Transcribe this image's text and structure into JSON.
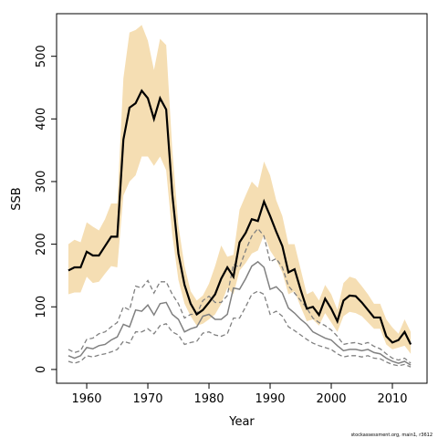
{
  "chart_data": {
    "type": "line",
    "xlabel": "Year",
    "ylabel": "SSB",
    "footer": "stockassessment.org, main1, r3612",
    "x": [
      1957,
      1958,
      1959,
      1960,
      1961,
      1962,
      1963,
      1964,
      1965,
      1966,
      1967,
      1968,
      1969,
      1970,
      1971,
      1972,
      1973,
      1974,
      1975,
      1976,
      1977,
      1978,
      1979,
      1980,
      1981,
      1982,
      1983,
      1984,
      1985,
      1986,
      1987,
      1988,
      1989,
      1990,
      1991,
      1992,
      1993,
      1994,
      1995,
      1996,
      1997,
      1998,
      1999,
      2000,
      2001,
      2002,
      2003,
      2004,
      2005,
      2006,
      2007,
      2008,
      2009,
      2010,
      2011,
      2012,
      2013
    ],
    "series": [
      {
        "color": "#000000",
        "band_color": "#f5deb3",
        "bound_style": "band",
        "values": [
          158,
          163,
          163,
          188,
          182,
          182,
          197,
          212,
          212,
          367,
          418,
          425,
          445,
          433,
          400,
          433,
          415,
          280,
          185,
          135,
          105,
          88,
          95,
          107,
          120,
          145,
          163,
          148,
          203,
          218,
          240,
          237,
          268,
          245,
          220,
          197,
          155,
          160,
          127,
          97,
          100,
          87,
          113,
          97,
          77,
          110,
          118,
          117,
          107,
          95,
          83,
          83,
          53,
          43,
          47,
          60,
          40
        ],
        "upper": [
          200,
          207,
          203,
          235,
          228,
          222,
          240,
          265,
          265,
          465,
          538,
          542,
          550,
          525,
          478,
          528,
          518,
          350,
          230,
          165,
          125,
          110,
          118,
          137,
          165,
          198,
          180,
          183,
          255,
          278,
          300,
          290,
          332,
          310,
          270,
          245,
          200,
          200,
          160,
          120,
          125,
          110,
          135,
          120,
          95,
          138,
          148,
          145,
          133,
          120,
          105,
          105,
          80,
          67,
          57,
          80,
          60
        ],
        "lower": [
          120,
          123,
          123,
          148,
          138,
          140,
          153,
          165,
          163,
          278,
          300,
          310,
          340,
          340,
          325,
          340,
          318,
          215,
          143,
          105,
          85,
          70,
          73,
          80,
          88,
          105,
          130,
          120,
          158,
          170,
          185,
          190,
          215,
          190,
          175,
          155,
          120,
          125,
          100,
          77,
          80,
          70,
          90,
          75,
          60,
          85,
          92,
          90,
          85,
          75,
          65,
          65,
          40,
          32,
          35,
          38,
          25
        ]
      },
      {
        "color": "#808080",
        "bound_style": "dashed",
        "values": [
          22,
          18,
          22,
          35,
          33,
          38,
          40,
          47,
          52,
          72,
          68,
          95,
          93,
          103,
          87,
          105,
          107,
          88,
          80,
          60,
          65,
          68,
          85,
          88,
          80,
          80,
          88,
          130,
          128,
          145,
          165,
          172,
          163,
          128,
          132,
          122,
          98,
          90,
          80,
          72,
          60,
          55,
          50,
          47,
          38,
          30,
          32,
          32,
          30,
          32,
          27,
          25,
          18,
          13,
          10,
          13,
          7
        ],
        "upper": [
          32,
          27,
          30,
          48,
          50,
          57,
          60,
          68,
          75,
          100,
          95,
          133,
          130,
          142,
          122,
          140,
          140,
          120,
          105,
          82,
          88,
          88,
          110,
          117,
          107,
          107,
          118,
          168,
          163,
          190,
          213,
          225,
          213,
          172,
          177,
          163,
          133,
          122,
          110,
          98,
          82,
          75,
          70,
          63,
          53,
          40,
          42,
          43,
          40,
          43,
          37,
          33,
          25,
          18,
          15,
          18,
          10
        ],
        "lower": [
          13,
          10,
          13,
          22,
          20,
          23,
          25,
          28,
          32,
          45,
          42,
          60,
          60,
          65,
          57,
          70,
          73,
          60,
          55,
          40,
          43,
          45,
          58,
          60,
          55,
          53,
          57,
          82,
          82,
          100,
          120,
          125,
          120,
          88,
          93,
          85,
          68,
          62,
          55,
          48,
          42,
          38,
          35,
          32,
          25,
          20,
          22,
          22,
          20,
          22,
          18,
          17,
          12,
          8,
          6,
          8,
          4
        ]
      }
    ],
    "xlim": [
      1955.07,
      2015.67
    ],
    "xticks": [
      1960,
      1970,
      1980,
      1990,
      2000,
      2010
    ],
    "ylim": [
      -22,
      568
    ],
    "yticks": [
      0,
      100,
      200,
      300,
      400,
      500
    ]
  }
}
